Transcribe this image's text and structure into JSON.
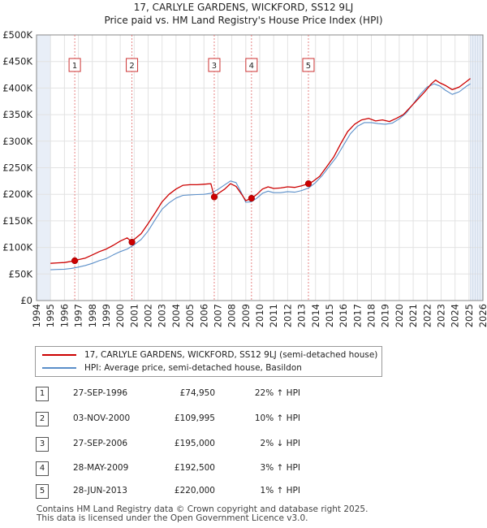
{
  "title_line1": "17, CARLYLE GARDENS, WICKFORD, SS12 9LJ",
  "title_line2": "Price paid vs. HM Land Registry's House Price Index (HPI)",
  "colors": {
    "property": "#cc0000",
    "hpi": "#5b8fc9",
    "shade": "#e8eef7",
    "marker_line": "#e06666"
  },
  "legend": {
    "property_label": "17, CARLYLE GARDENS, WICKFORD, SS12 9LJ (semi-detached house)",
    "hpi_label": "HPI: Average price, semi-detached house, Basildon"
  },
  "chart_data": {
    "type": "line",
    "x_range": [
      1994,
      2026
    ],
    "y_range": [
      0,
      500000
    ],
    "y_ticks": [
      {
        "value": 0,
        "label": "£0"
      },
      {
        "value": 50000,
        "label": "£50K"
      },
      {
        "value": 100000,
        "label": "£100K"
      },
      {
        "value": 150000,
        "label": "£150K"
      },
      {
        "value": 200000,
        "label": "£200K"
      },
      {
        "value": 250000,
        "label": "£250K"
      },
      {
        "value": 300000,
        "label": "£300K"
      },
      {
        "value": 350000,
        "label": "£350K"
      },
      {
        "value": 400000,
        "label": "£400K"
      },
      {
        "value": 450000,
        "label": "£450K"
      },
      {
        "value": 500000,
        "label": "£500K"
      }
    ],
    "x_ticks": [
      1994,
      1995,
      1996,
      1997,
      1998,
      1999,
      2000,
      2001,
      2002,
      2003,
      2004,
      2005,
      2006,
      2007,
      2008,
      2009,
      2010,
      2011,
      2012,
      2013,
      2014,
      2015,
      2016,
      2017,
      2018,
      2019,
      2020,
      2021,
      2022,
      2023,
      2024,
      2025,
      2026
    ],
    "data_start": 1995.0,
    "data_end": 2025.1,
    "series": [
      {
        "name": "17, CARLYLE GARDENS, WICKFORD, SS12 9LJ (semi-detached house)",
        "points": [
          [
            1995.0,
            70000
          ],
          [
            1995.5,
            71000
          ],
          [
            1996.0,
            71500
          ],
          [
            1996.74,
            74950
          ],
          [
            1997.0,
            77000
          ],
          [
            1997.5,
            80000
          ],
          [
            1998.0,
            86000
          ],
          [
            1998.5,
            92000
          ],
          [
            1999.0,
            97000
          ],
          [
            1999.5,
            104000
          ],
          [
            2000.0,
            112000
          ],
          [
            2000.5,
            118000
          ],
          [
            2000.84,
            109995
          ],
          [
            2001.0,
            115000
          ],
          [
            2001.5,
            126000
          ],
          [
            2002.0,
            145000
          ],
          [
            2002.5,
            165000
          ],
          [
            2003.0,
            186000
          ],
          [
            2003.5,
            200000
          ],
          [
            2004.0,
            210000
          ],
          [
            2004.5,
            217000
          ],
          [
            2005.0,
            218000
          ],
          [
            2005.5,
            218000
          ],
          [
            2006.0,
            219000
          ],
          [
            2006.5,
            220000
          ],
          [
            2006.74,
            195000
          ],
          [
            2007.0,
            201000
          ],
          [
            2007.5,
            210000
          ],
          [
            2007.9,
            220000
          ],
          [
            2008.3,
            215000
          ],
          [
            2008.7,
            200000
          ],
          [
            2009.0,
            188000
          ],
          [
            2009.41,
            192500
          ],
          [
            2009.8,
            200000
          ],
          [
            2010.2,
            210000
          ],
          [
            2010.6,
            214000
          ],
          [
            2011.0,
            211000
          ],
          [
            2011.5,
            212000
          ],
          [
            2012.0,
            214000
          ],
          [
            2012.5,
            213000
          ],
          [
            2013.0,
            216000
          ],
          [
            2013.49,
            220000
          ],
          [
            2013.8,
            224000
          ],
          [
            2014.3,
            234000
          ],
          [
            2014.8,
            252000
          ],
          [
            2015.3,
            270000
          ],
          [
            2015.8,
            295000
          ],
          [
            2016.3,
            318000
          ],
          [
            2016.8,
            332000
          ],
          [
            2017.3,
            340000
          ],
          [
            2017.8,
            343000
          ],
          [
            2018.3,
            338000
          ],
          [
            2018.8,
            340000
          ],
          [
            2019.3,
            337000
          ],
          [
            2019.8,
            343000
          ],
          [
            2020.3,
            350000
          ],
          [
            2020.8,
            364000
          ],
          [
            2021.3,
            378000
          ],
          [
            2021.8,
            392000
          ],
          [
            2022.3,
            408000
          ],
          [
            2022.6,
            415000
          ],
          [
            2022.9,
            410000
          ],
          [
            2023.3,
            405000
          ],
          [
            2023.8,
            397000
          ],
          [
            2024.3,
            402000
          ],
          [
            2024.8,
            412000
          ],
          [
            2025.1,
            418000
          ]
        ]
      },
      {
        "name": "HPI: Average price, semi-detached house, Basildon",
        "points": [
          [
            1995.0,
            58000
          ],
          [
            1995.5,
            58500
          ],
          [
            1996.0,
            59000
          ],
          [
            1996.5,
            60500
          ],
          [
            1997.0,
            63000
          ],
          [
            1997.5,
            66000
          ],
          [
            1998.0,
            70000
          ],
          [
            1998.5,
            75000
          ],
          [
            1999.0,
            79000
          ],
          [
            1999.5,
            86000
          ],
          [
            2000.0,
            92000
          ],
          [
            2000.5,
            97000
          ],
          [
            2001.0,
            105000
          ],
          [
            2001.5,
            115000
          ],
          [
            2002.0,
            131000
          ],
          [
            2002.5,
            152000
          ],
          [
            2003.0,
            172000
          ],
          [
            2003.5,
            184000
          ],
          [
            2004.0,
            193000
          ],
          [
            2004.5,
            198000
          ],
          [
            2005.0,
            199000
          ],
          [
            2005.5,
            199500
          ],
          [
            2006.0,
            200000
          ],
          [
            2006.5,
            202000
          ],
          [
            2007.0,
            209000
          ],
          [
            2007.5,
            218000
          ],
          [
            2007.9,
            225000
          ],
          [
            2008.3,
            222000
          ],
          [
            2008.7,
            202000
          ],
          [
            2009.0,
            185000
          ],
          [
            2009.4,
            186000
          ],
          [
            2009.8,
            193000
          ],
          [
            2010.2,
            202000
          ],
          [
            2010.6,
            206000
          ],
          [
            2011.0,
            203000
          ],
          [
            2011.5,
            203000
          ],
          [
            2012.0,
            205000
          ],
          [
            2012.5,
            204000
          ],
          [
            2013.0,
            207000
          ],
          [
            2013.5,
            212000
          ],
          [
            2014.0,
            222000
          ],
          [
            2014.5,
            236000
          ],
          [
            2015.0,
            253000
          ],
          [
            2015.5,
            270000
          ],
          [
            2016.0,
            292000
          ],
          [
            2016.5,
            314000
          ],
          [
            2017.0,
            328000
          ],
          [
            2017.5,
            335000
          ],
          [
            2018.0,
            335000
          ],
          [
            2018.5,
            333000
          ],
          [
            2019.0,
            332000
          ],
          [
            2019.5,
            334000
          ],
          [
            2020.0,
            342000
          ],
          [
            2020.5,
            353000
          ],
          [
            2021.0,
            370000
          ],
          [
            2021.5,
            388000
          ],
          [
            2022.0,
            402000
          ],
          [
            2022.5,
            408000
          ],
          [
            2022.9,
            404000
          ],
          [
            2023.3,
            396000
          ],
          [
            2023.8,
            388000
          ],
          [
            2024.3,
            393000
          ],
          [
            2024.8,
            403000
          ],
          [
            2025.1,
            408000
          ]
        ]
      }
    ],
    "sales": [
      {
        "id": "1",
        "x": 1996.74,
        "price": 74950
      },
      {
        "id": "2",
        "x": 2000.84,
        "price": 109995
      },
      {
        "id": "3",
        "x": 2006.74,
        "price": 195000
      },
      {
        "id": "4",
        "x": 2009.41,
        "price": 192500
      },
      {
        "id": "5",
        "x": 2013.49,
        "price": 220000
      }
    ]
  },
  "transactions": [
    {
      "num": "1",
      "date": "27-SEP-1996",
      "price": "£74,950",
      "hpi": "22% ↑ HPI"
    },
    {
      "num": "2",
      "date": "03-NOV-2000",
      "price": "£109,995",
      "hpi": "10% ↑ HPI"
    },
    {
      "num": "3",
      "date": "27-SEP-2006",
      "price": "£195,000",
      "hpi": "2% ↓ HPI"
    },
    {
      "num": "4",
      "date": "28-MAY-2009",
      "price": "£192,500",
      "hpi": "3% ↑ HPI"
    },
    {
      "num": "5",
      "date": "28-JUN-2013",
      "price": "£220,000",
      "hpi": "1% ↑ HPI"
    }
  ],
  "footer_line1": "Contains HM Land Registry data © Crown copyright and database right 2025.",
  "footer_line2": "This data is licensed under the Open Government Licence v3.0."
}
